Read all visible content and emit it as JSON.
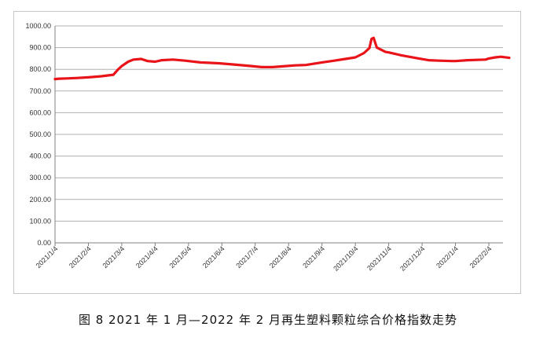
{
  "caption": "图 8  2021 年 1 月—2022 年 2 月再生塑料颗粒综合价格指数走势",
  "chart_data": {
    "type": "line",
    "title": "",
    "xlabel": "",
    "ylabel": "",
    "ylim": [
      0,
      1000
    ],
    "y_ticks": [
      "0.00",
      "100.00",
      "200.00",
      "300.00",
      "400.00",
      "500.00",
      "600.00",
      "700.00",
      "800.00",
      "900.00",
      "1000.00"
    ],
    "x_ticks": [
      "2021/1/4",
      "2021/2/4",
      "2021/3/4",
      "2021/4/4",
      "2021/5/4",
      "2021/6/4",
      "2021/7/4",
      "2021/8/4",
      "2021/9/4",
      "2021/10/4",
      "2021/11/4",
      "2021/12/4",
      "2022/1/4",
      "2022/2/4"
    ],
    "grid": true,
    "series_color": "#e8141a",
    "series": [
      {
        "name": "",
        "x": [
          "2021/1/4",
          "2021/1/8",
          "2021/1/15",
          "2021/1/25",
          "2021/2/4",
          "2021/2/15",
          "2021/2/25",
          "2021/3/1",
          "2021/3/4",
          "2021/3/10",
          "2021/3/15",
          "2021/3/22",
          "2021/3/28",
          "2021/4/4",
          "2021/4/10",
          "2021/4/20",
          "2021/5/1",
          "2021/5/4",
          "2021/5/15",
          "2021/6/1",
          "2021/6/15",
          "2021/7/1",
          "2021/7/10",
          "2021/7/20",
          "2021/8/1",
          "2021/8/10",
          "2021/8/20",
          "2021/9/4",
          "2021/9/15",
          "2021/9/25",
          "2021/10/4",
          "2021/10/12",
          "2021/10/17",
          "2021/10/19",
          "2021/10/21",
          "2021/10/24",
          "2021/11/1",
          "2021/11/4",
          "2021/11/15",
          "2021/12/1",
          "2021/12/10",
          "2021/12/20",
          "2022/1/1",
          "2022/1/4",
          "2022/1/15",
          "2022/2/1",
          "2022/2/4",
          "2022/2/10",
          "2022/2/15",
          "2022/2/23"
        ],
        "values": [
          755,
          757,
          758,
          760,
          763,
          768,
          775,
          800,
          815,
          835,
          845,
          848,
          838,
          835,
          842,
          845,
          840,
          838,
          832,
          828,
          822,
          815,
          810,
          810,
          815,
          818,
          820,
          832,
          840,
          848,
          855,
          875,
          898,
          940,
          945,
          900,
          880,
          878,
          865,
          850,
          842,
          840,
          838,
          838,
          842,
          845,
          850,
          855,
          858,
          853
        ]
      }
    ]
  }
}
